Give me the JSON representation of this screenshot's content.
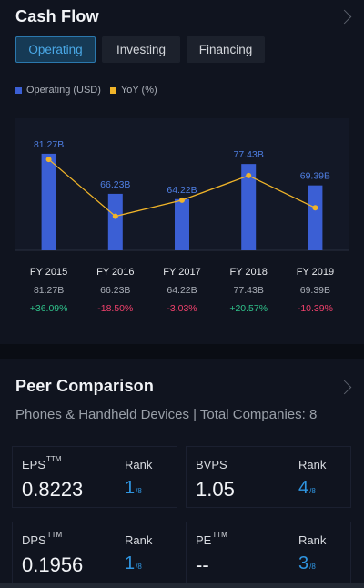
{
  "cash_flow": {
    "title": "Cash Flow",
    "tabs": [
      {
        "label": "Operating",
        "active": true
      },
      {
        "label": "Investing",
        "active": false
      },
      {
        "label": "Financing",
        "active": false
      }
    ],
    "legend": [
      {
        "label": "Operating (USD)",
        "color": "#3b5fd4"
      },
      {
        "label": "YoY (%)",
        "color": "#f0b429"
      }
    ]
  },
  "chart_data": {
    "type": "bar",
    "categories": [
      "FY 2015",
      "FY 2016",
      "FY 2017",
      "FY 2018",
      "FY 2019"
    ],
    "series": [
      {
        "name": "Operating (USD)",
        "values": [
          81.27,
          66.23,
          64.22,
          77.43,
          69.39
        ],
        "unit": "B",
        "labels": [
          "81.27B",
          "66.23B",
          "64.22B",
          "77.43B",
          "69.39B"
        ],
        "color": "#3b5fd4"
      },
      {
        "name": "YoY (%)",
        "values": [
          36.09,
          -18.5,
          -3.03,
          20.57,
          -10.39
        ],
        "labels": [
          "+36.09%",
          "-18.50%",
          "-3.03%",
          "+20.57%",
          "-10.39%"
        ],
        "color": "#f0b429"
      }
    ],
    "row_values": [
      "81.27B",
      "66.23B",
      "64.22B",
      "77.43B",
      "69.39B"
    ],
    "positive_color": "#2fc28b",
    "negative_color": "#f0416c"
  },
  "peer": {
    "title": "Peer Comparison",
    "subtitle": "Phones & Handheld Devices | Total Companies: 8",
    "rank_label": "Rank",
    "metrics": [
      {
        "name": "EPS",
        "sup": "TTM",
        "value": "0.8223",
        "rank": "1",
        "total": "/8"
      },
      {
        "name": "BVPS",
        "sup": "",
        "value": "1.05",
        "rank": "4",
        "total": "/8"
      },
      {
        "name": "DPS",
        "sup": "TTM",
        "value": "0.1956",
        "rank": "1",
        "total": "/8"
      },
      {
        "name": "PE",
        "sup": "TTM",
        "value": "--",
        "rank": "3",
        "total": "/8"
      }
    ]
  }
}
